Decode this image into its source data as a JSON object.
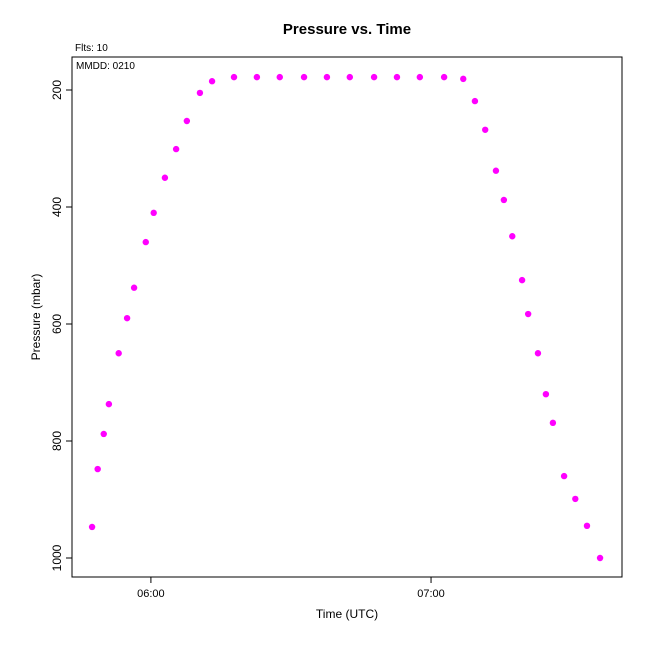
{
  "chart_data": {
    "type": "scatter",
    "title": "Pressure  vs. Time",
    "subtitle": "Flts: 10",
    "annotation": "MMDD: 0210",
    "x_label": "Time (UTC)",
    "y_label": "Pressure (mbar)",
    "color": "#ff00ff",
    "xlim": [
      343.1,
      460.9
    ],
    "xticks": [
      {
        "value": 360,
        "label": "06:00"
      },
      {
        "value": 420,
        "label": "07:00"
      }
    ],
    "ylim": [
      1032.5,
      143.6
    ],
    "yticks": [
      200,
      400,
      600,
      800,
      1000
    ],
    "x": [
      347.4,
      348.6,
      349.9,
      351.0,
      353.1,
      354.9,
      356.4,
      358.9,
      360.6,
      363.0,
      365.4,
      367.7,
      370.5,
      373.1,
      377.8,
      382.7,
      387.6,
      392.8,
      397.7,
      402.6,
      407.8,
      412.7,
      417.6,
      422.8,
      426.9,
      429.4,
      431.6,
      433.9,
      435.6,
      437.4,
      439.5,
      440.8,
      442.9,
      444.6,
      446.1,
      448.5,
      450.9,
      453.4,
      456.2
    ],
    "values": [
      947,
      848,
      788,
      737,
      650,
      590,
      538,
      460,
      410,
      350,
      301,
      253,
      205,
      185,
      178,
      178,
      178,
      178,
      178,
      178,
      178,
      178,
      178,
      178,
      181,
      219,
      268,
      338,
      388,
      450,
      525,
      583,
      650,
      720,
      769,
      860,
      899,
      945,
      1000
    ]
  }
}
